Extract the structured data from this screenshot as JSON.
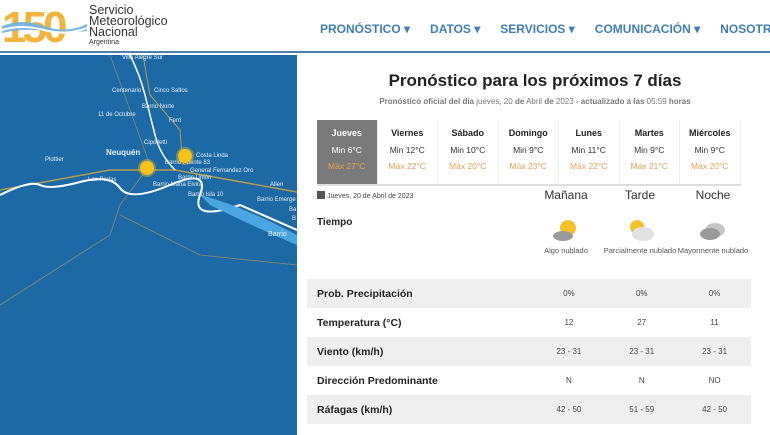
{
  "header": {
    "brand": {
      "logo_text": "150",
      "line1": "Servicio",
      "line2": "Meteorológico",
      "line3": "Nacional",
      "line4": "Argentina"
    },
    "nav": [
      "PRONÓSTICO",
      "DATOS",
      "SERVICIOS",
      "COMUNICACIÓN",
      "NOSOTROS"
    ]
  },
  "map": {
    "labels": [
      "Villa Alegre Sur",
      "Centenario",
      "Cinco Saltos",
      "Barrio Norte",
      "11 de Octubre",
      "Ferri",
      "Cipolletti",
      "Neuquén",
      "Costa Linda",
      "Plottier",
      "Barrio Puente 83",
      "General Fernandez Oro",
      "Las Perlas",
      "Barrio Unión",
      "Allen",
      "Barrio Maria Elvira",
      "Barrio Isla 10",
      "Barrio Emerge",
      "Ba",
      "B",
      "Barrio"
    ],
    "route_labels": [
      "22",
      "22",
      "22",
      "151",
      "7",
      "7"
    ]
  },
  "forecast": {
    "title": "Pronóstico para los próximos 7 días",
    "subtitle": {
      "a": "Pronóstico oficial del día",
      "b": "jueves, 20",
      "c": "de",
      "d": "Abril",
      "e": "de",
      "f": "2023",
      "g": "- actualizado a las",
      "h": "05:59",
      "i": "horas"
    },
    "days": [
      {
        "name": "Jueves",
        "min": "Min 6°C",
        "max": "Máx 27°C",
        "selected": true
      },
      {
        "name": "Viernes",
        "min": "Min 12°C",
        "max": "Máx 22°C"
      },
      {
        "name": "Sábado",
        "min": "Min 10°C",
        "max": "Máx 20°C"
      },
      {
        "name": "Domingo",
        "min": "Min 9°C",
        "max": "Máx 23°C"
      },
      {
        "name": "Lunes",
        "min": "Min 11°C",
        "max": "Máx 22°C"
      },
      {
        "name": "Martes",
        "min": "Min 9°C",
        "max": "Máx 21°C"
      },
      {
        "name": "Miércoles",
        "min": "Min 9°C",
        "max": "Máx 20°C"
      }
    ],
    "date": "Jueves, 20 de Abril de 2023",
    "periods": [
      "Mañana",
      "Tarde",
      "Noche"
    ],
    "tiempo_label": "Tiempo",
    "conditions": [
      {
        "icon": "sun-cloud-icon",
        "text": "Algo nublado"
      },
      {
        "icon": "partly-cloudy-icon",
        "text": "Parcialmente nublado"
      },
      {
        "icon": "cloudy-icon",
        "text": "Mayormente nublado"
      }
    ],
    "rows": [
      {
        "label": "Prob. Precipitación",
        "values": [
          "0%",
          "0%",
          "0%"
        ]
      },
      {
        "label": "Temperatura (°C)",
        "values": [
          "12",
          "27",
          "11"
        ]
      },
      {
        "label": "Viento (km/h)",
        "values": [
          "23 - 31",
          "23 - 31",
          "23 - 31"
        ]
      },
      {
        "label": "Dirección Predominante",
        "values": [
          "N",
          "N",
          "NO"
        ]
      },
      {
        "label": "Ráfagas (km/h)",
        "values": [
          "42 - 50",
          "51 - 59",
          "42 - 50"
        ]
      }
    ],
    "colors": {
      "map": "#1b6aa6",
      "nav": "#3f7db8",
      "max": "#e8a050",
      "selected": "#7a7a7a"
    }
  }
}
